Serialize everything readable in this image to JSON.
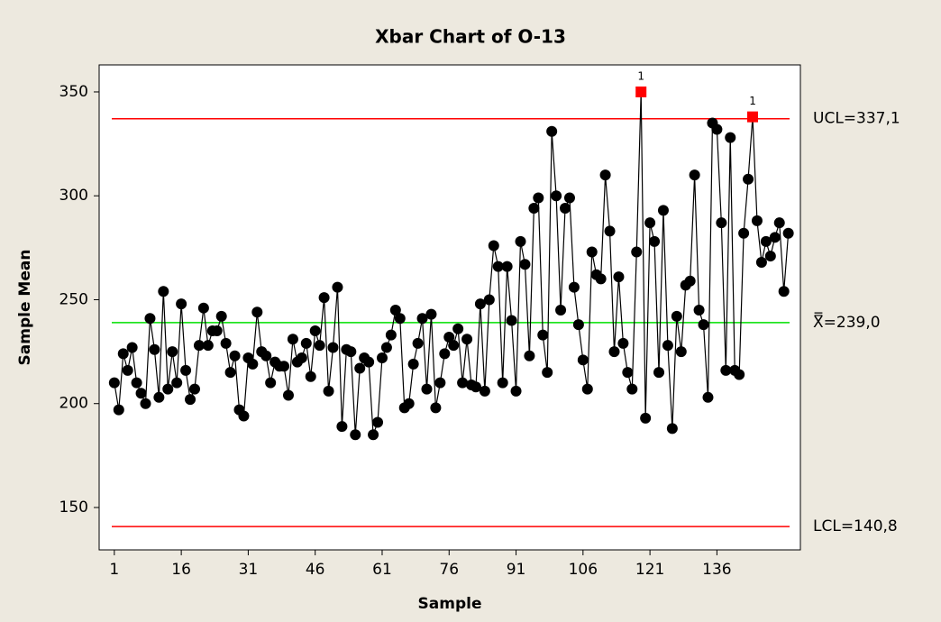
{
  "chart_data": {
    "type": "line",
    "title": "Xbar Chart of O-13",
    "x_label": "Sample",
    "y_label": "Sample Mean",
    "x": [
      1,
      2,
      3,
      4,
      5,
      6,
      7,
      8,
      9,
      10,
      11,
      12,
      13,
      14,
      15,
      16,
      17,
      18,
      19,
      20,
      21,
      22,
      23,
      24,
      25,
      26,
      27,
      28,
      29,
      30,
      31,
      32,
      33,
      34,
      35,
      36,
      37,
      38,
      39,
      40,
      41,
      42,
      43,
      44,
      45,
      46,
      47,
      48,
      49,
      50,
      51,
      52,
      53,
      54,
      55,
      56,
      57,
      58,
      59,
      60,
      61,
      62,
      63,
      64,
      65,
      66,
      67,
      68,
      69,
      70,
      71,
      72,
      73,
      74,
      75,
      76,
      77,
      78,
      79,
      80,
      81,
      82,
      83,
      84,
      85,
      86,
      87,
      88,
      89,
      90,
      91,
      92,
      93,
      94,
      95,
      96,
      97,
      98,
      99,
      100,
      101,
      102,
      103,
      104,
      105,
      106,
      107,
      108,
      109,
      110,
      111,
      112,
      113,
      114,
      115,
      116,
      117,
      118,
      119,
      120,
      121,
      122,
      123,
      124,
      125,
      126,
      127,
      128,
      129,
      130,
      131,
      132,
      133,
      134,
      135,
      136,
      137,
      138,
      139,
      140,
      141,
      142,
      143,
      144,
      145,
      146,
      147,
      148,
      149,
      150,
      151,
      152
    ],
    "series": [
      {
        "name": "Sample Mean",
        "color": "#000000",
        "values": [
          210,
          197,
          224,
          216,
          227,
          210,
          205,
          200,
          241,
          226,
          203,
          254,
          207,
          225,
          210,
          248,
          216,
          202,
          207,
          228,
          246,
          228,
          235,
          235,
          242,
          229,
          215,
          223,
          197,
          194,
          222,
          219,
          244,
          225,
          223,
          210,
          220,
          218,
          218,
          204,
          231,
          220,
          222,
          229,
          213,
          235,
          228,
          251,
          206,
          227,
          256,
          189,
          226,
          225,
          185,
          217,
          222,
          220,
          185,
          191,
          222,
          227,
          233,
          245,
          241,
          198,
          200,
          219,
          229,
          241,
          207,
          243,
          198,
          210,
          224,
          232,
          228,
          236,
          210,
          231,
          209,
          208,
          248,
          206,
          250,
          276,
          266,
          210,
          266,
          240,
          206,
          278,
          267,
          223,
          294,
          299,
          233,
          215,
          331,
          300,
          245,
          294,
          299,
          256,
          238,
          221,
          207,
          273,
          262,
          260,
          310,
          283,
          225,
          261,
          229,
          215,
          207,
          273,
          350,
          193,
          287,
          278,
          215,
          293,
          228,
          188,
          242,
          225,
          257,
          259,
          310,
          245,
          238,
          203,
          335,
          332,
          287,
          216,
          328,
          216,
          214,
          282,
          308,
          338,
          288,
          268,
          278,
          271,
          280,
          287,
          254,
          282
        ]
      }
    ],
    "flagged": [
      {
        "x": 119,
        "label": "1",
        "color": "#ff0000"
      },
      {
        "x": 144,
        "label": "1",
        "color": "#ff0000"
      }
    ],
    "control_lines": [
      {
        "value": 337.1,
        "label": "UCL=337,1",
        "color": "#ff0000"
      },
      {
        "value": 239.0,
        "label": "X̿=239,0",
        "color": "#00e000"
      },
      {
        "value": 140.8,
        "label": "LCL=140,8",
        "color": "#ff0000"
      }
    ],
    "xlim": [
      -2.4,
      154.7
    ],
    "ylim": [
      129.6,
      363
    ],
    "xticks": [
      1,
      16,
      31,
      46,
      61,
      76,
      91,
      106,
      121,
      136
    ],
    "yticks": [
      150,
      200,
      250,
      300,
      350
    ]
  }
}
